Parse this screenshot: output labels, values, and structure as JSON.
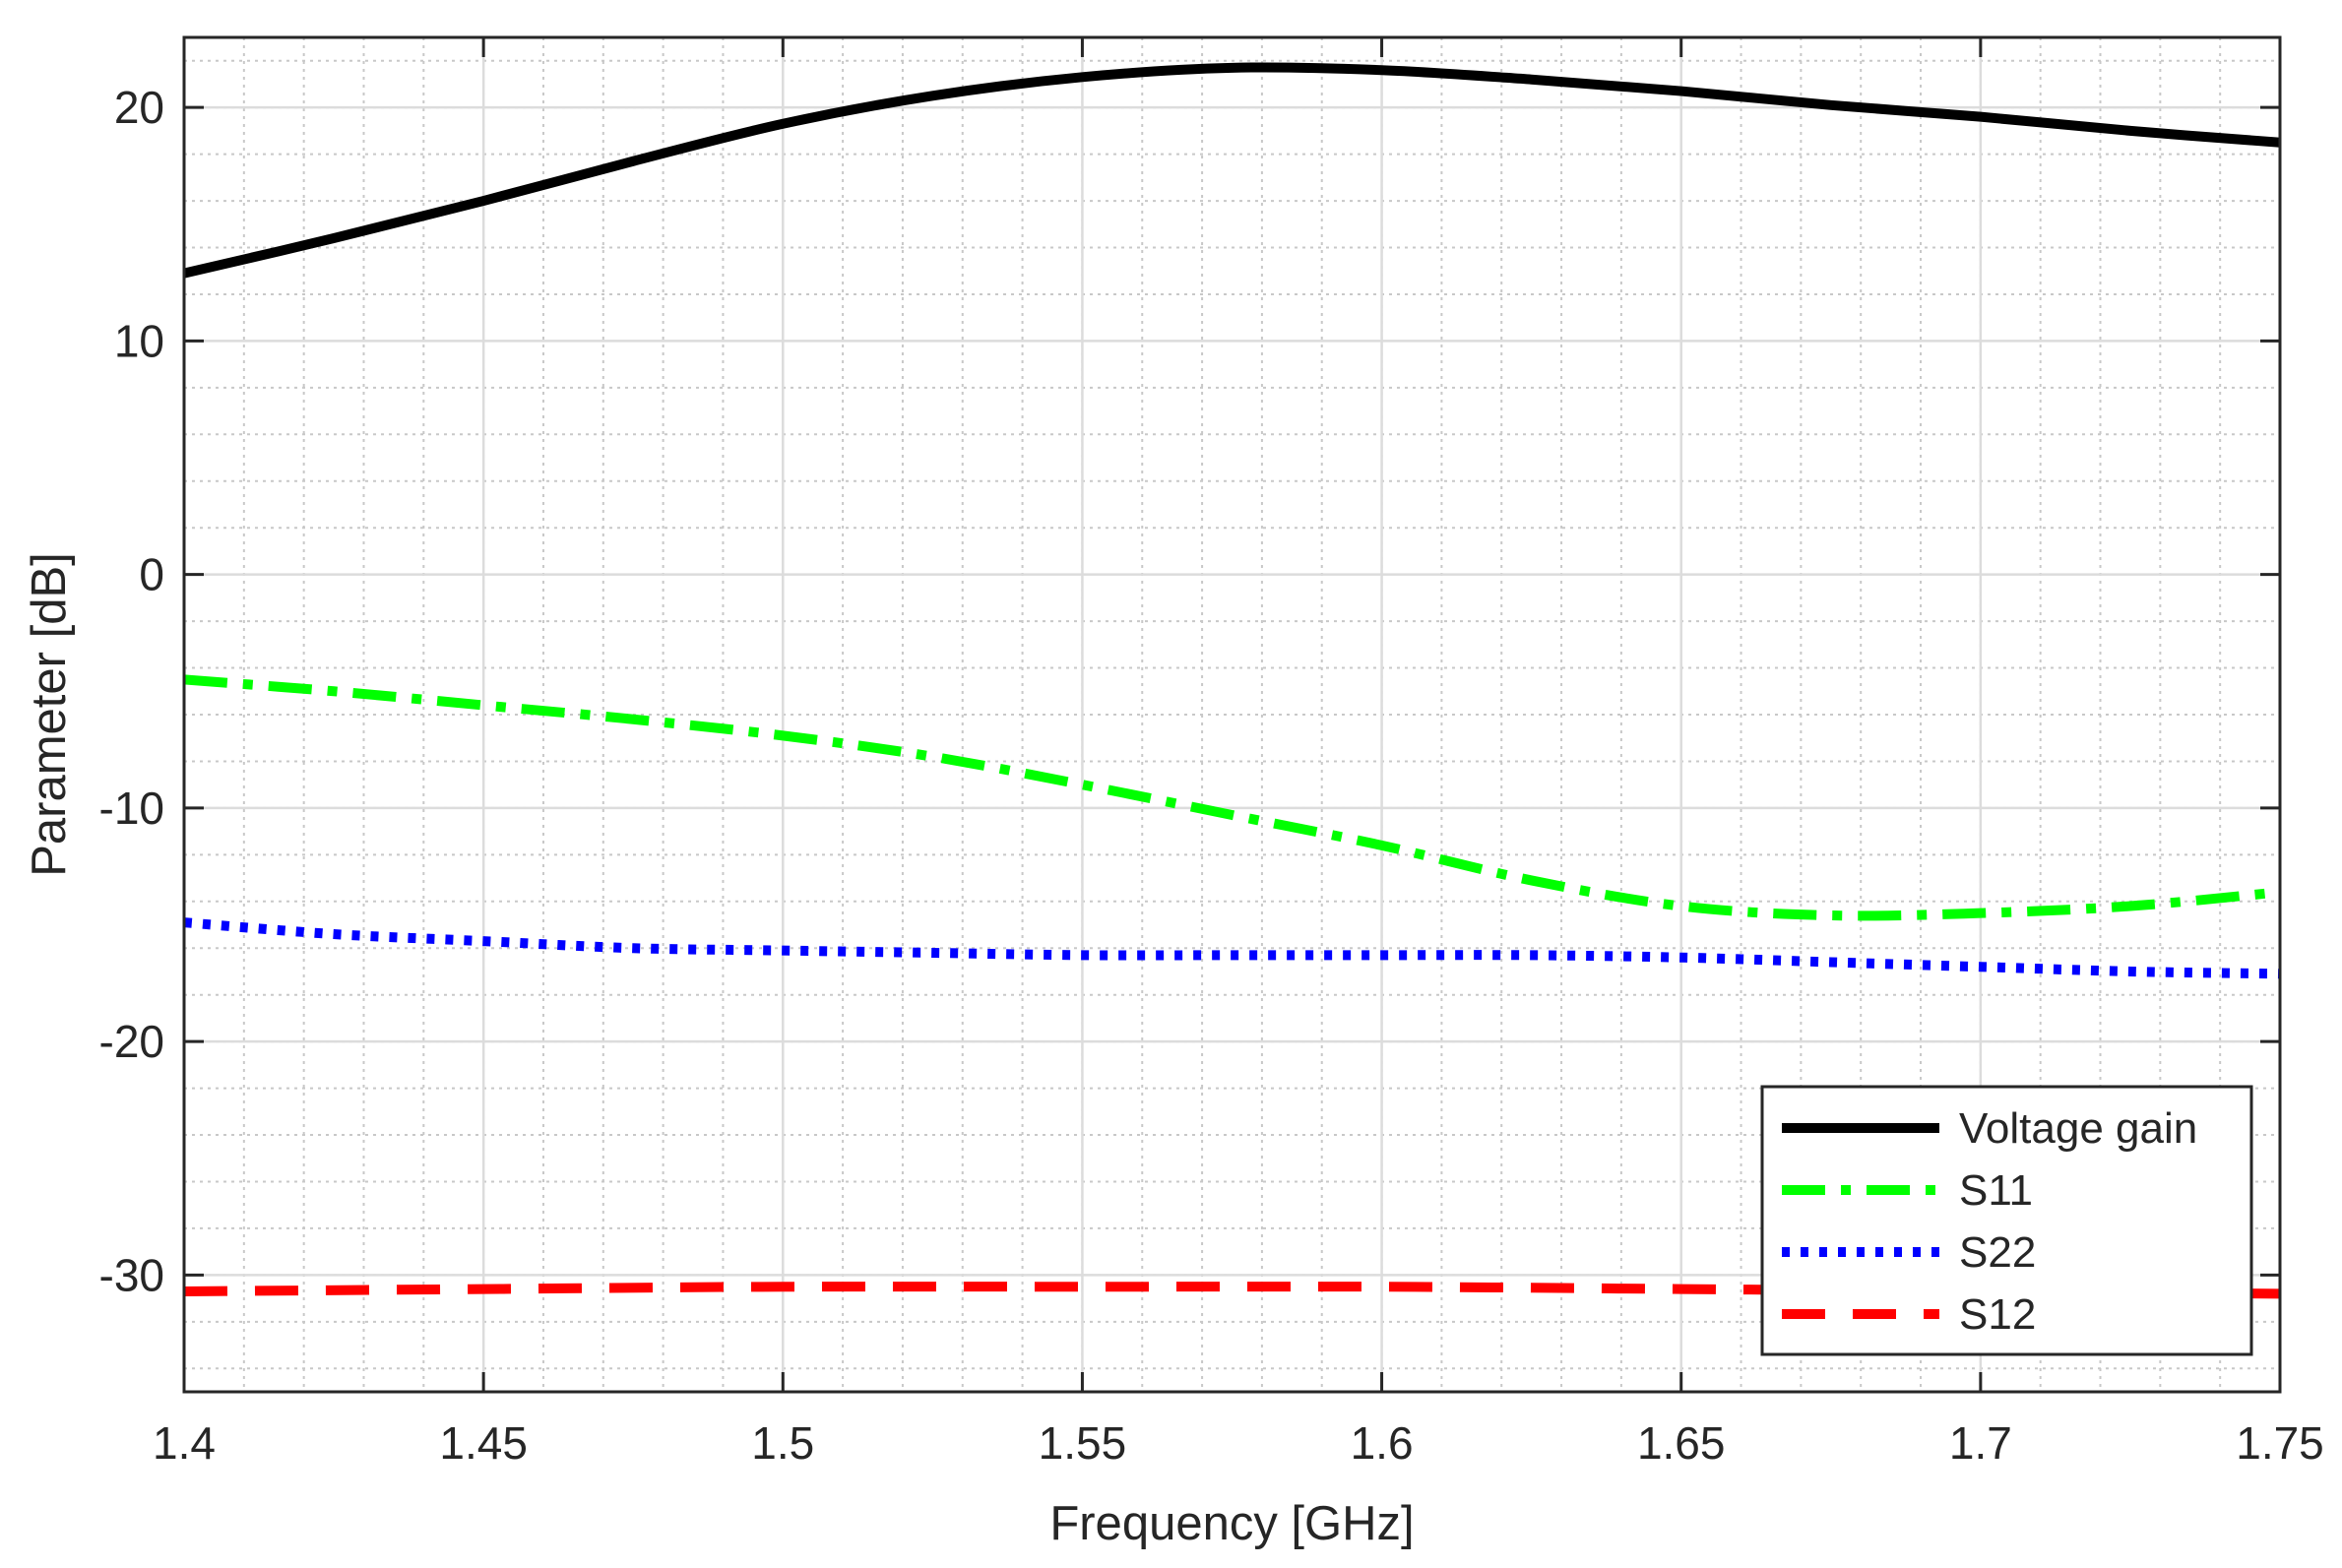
{
  "chart_data": {
    "type": "line",
    "title": "",
    "xlabel": "Frequency [GHz]",
    "ylabel": "Parameter [dB]",
    "xlim": [
      1.4,
      1.75
    ],
    "ylim": [
      -35,
      23
    ],
    "xticks": [
      1.4,
      1.45,
      1.5,
      1.55,
      1.6,
      1.65,
      1.7,
      1.75
    ],
    "xtick_labels": [
      "1.4",
      "1.45",
      "1.5",
      "1.55",
      "1.6",
      "1.65",
      "1.7",
      "1.75"
    ],
    "yticks": [
      -30,
      -20,
      -10,
      0,
      10,
      20
    ],
    "ytick_labels": [
      "-30",
      "-20",
      "-10",
      "0",
      "10",
      "20"
    ],
    "grid": true,
    "minor_grid": true,
    "legend_position": "bottom-right",
    "series": [
      {
        "name": "Voltage gain",
        "color": "#000000",
        "style": "solid",
        "x": [
          1.4,
          1.425,
          1.45,
          1.475,
          1.5,
          1.525,
          1.55,
          1.575,
          1.6,
          1.625,
          1.65,
          1.675,
          1.7,
          1.725,
          1.75
        ],
        "y": [
          12.9,
          14.4,
          16.0,
          17.7,
          19.3,
          20.5,
          21.3,
          21.7,
          21.6,
          21.2,
          20.7,
          20.1,
          19.6,
          19.0,
          18.5
        ]
      },
      {
        "name": "S11",
        "color": "#00ff00",
        "style": "dashdot",
        "x": [
          1.4,
          1.425,
          1.45,
          1.475,
          1.5,
          1.525,
          1.55,
          1.575,
          1.6,
          1.625,
          1.65,
          1.675,
          1.7,
          1.725,
          1.75
        ],
        "y": [
          -4.5,
          -5.0,
          -5.6,
          -6.2,
          -6.9,
          -7.8,
          -9.0,
          -10.3,
          -11.6,
          -13.1,
          -14.2,
          -14.6,
          -14.5,
          -14.2,
          -13.6
        ]
      },
      {
        "name": "S22",
        "color": "#0000ff",
        "style": "dotted",
        "x": [
          1.4,
          1.425,
          1.45,
          1.475,
          1.5,
          1.525,
          1.55,
          1.575,
          1.6,
          1.625,
          1.65,
          1.675,
          1.7,
          1.725,
          1.75
        ],
        "y": [
          -14.9,
          -15.4,
          -15.7,
          -16.0,
          -16.1,
          -16.2,
          -16.3,
          -16.3,
          -16.3,
          -16.3,
          -16.4,
          -16.6,
          -16.8,
          -17.0,
          -17.1
        ]
      },
      {
        "name": "S12",
        "color": "#ff0000",
        "style": "dashed",
        "x": [
          1.4,
          1.45,
          1.5,
          1.55,
          1.6,
          1.65,
          1.7,
          1.75
        ],
        "y": [
          -30.7,
          -30.6,
          -30.5,
          -30.5,
          -30.5,
          -30.6,
          -30.7,
          -30.8
        ]
      }
    ]
  }
}
